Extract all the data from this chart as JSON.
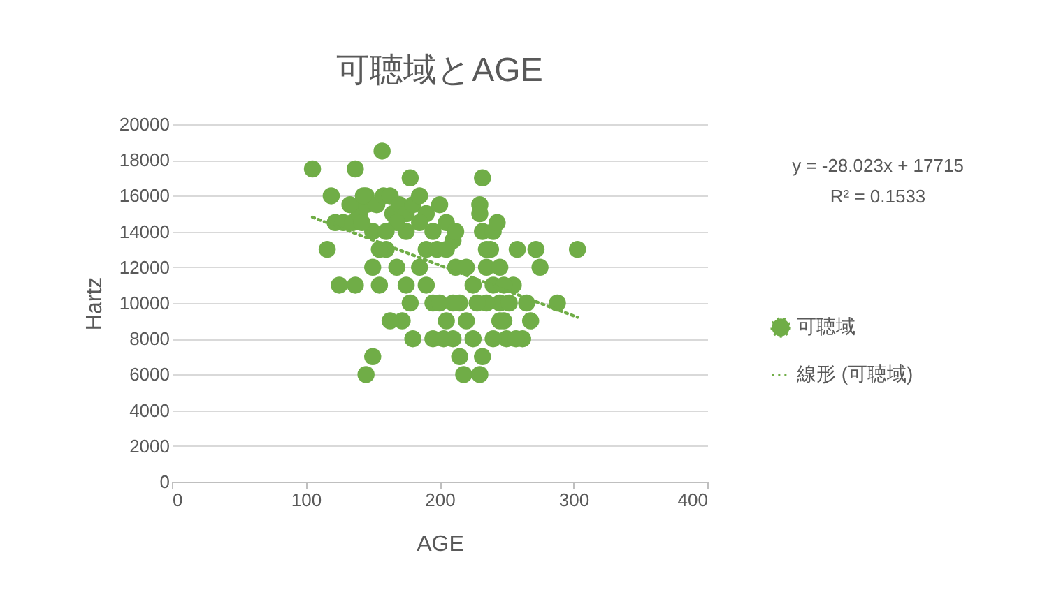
{
  "chart_data": {
    "type": "scatter",
    "title": "可聴域とAGE",
    "xlabel": "AGE",
    "ylabel": "Hartz",
    "xlim": [
      0,
      400
    ],
    "xticks": [
      0,
      100,
      200,
      300,
      400
    ],
    "ylim": [
      0,
      20000
    ],
    "yticks": [
      0,
      2000,
      4000,
      6000,
      8000,
      10000,
      12000,
      14000,
      16000,
      18000,
      20000
    ],
    "grid": "y",
    "legend": "right",
    "annotations": [
      "y = -28.023x + 17715",
      "R² = 0.1533"
    ],
    "series": [
      {
        "name": "可聴域",
        "marker": "circle",
        "color": "#70ad47",
        "x": [
          105,
          157,
          137,
          119,
          116,
          125,
          137,
          122,
          128,
          135,
          140,
          145,
          145,
          150,
          153,
          158,
          163,
          160,
          165,
          170,
          175,
          178,
          180,
          185,
          190,
          195,
          200,
          205,
          210,
          150,
          155,
          168,
          175,
          172,
          178,
          180,
          190,
          195,
          200,
          205,
          210,
          215,
          218,
          230,
          232,
          225,
          220,
          215,
          212,
          220,
          235,
          240,
          245,
          248,
          250,
          255,
          258,
          262,
          265,
          268,
          272,
          275,
          288,
          303,
          150,
          145,
          163,
          185,
          190,
          195,
          210,
          232,
          230,
          230,
          232,
          235,
          240,
          243,
          238,
          245,
          248,
          245,
          240,
          235,
          185,
          175,
          168,
          160,
          155,
          142,
          133,
          143,
          198,
          205,
          212,
          225,
          228,
          252,
          257,
          203
        ],
        "values": [
          17500,
          18500,
          17500,
          16000,
          13000,
          11000,
          11000,
          14500,
          14500,
          14500,
          15000,
          15500,
          16000,
          14000,
          15500,
          16000,
          16000,
          13000,
          15000,
          15500,
          15000,
          17000,
          15500,
          16000,
          15000,
          14000,
          15500,
          14500,
          13500,
          12000,
          11000,
          12000,
          11000,
          9000,
          10000,
          8000,
          11000,
          10000,
          10000,
          9000,
          8000,
          7000,
          6000,
          6000,
          7000,
          8000,
          9000,
          10000,
          12000,
          12000,
          12000,
          11000,
          10000,
          9000,
          8000,
          11000,
          13000,
          8000,
          10000,
          9000,
          13000,
          12000,
          10000,
          13000,
          7000,
          6000,
          9000,
          12000,
          13000,
          8000,
          10000,
          17000,
          15500,
          15000,
          14000,
          13000,
          14000,
          14500,
          13000,
          12000,
          11000,
          9000,
          8000,
          10000,
          14500,
          14000,
          14500,
          14000,
          13000,
          14500,
          15500,
          16000,
          13000,
          13000,
          14000,
          11000,
          10000,
          10000,
          8000,
          8000
        ]
      },
      {
        "name": "線形 (可聴域)",
        "type": "line",
        "marker": "none",
        "color": "#70ad47",
        "line_style": "dotted",
        "x": [
          105,
          303
        ],
        "values": [
          14800,
          9200
        ]
      }
    ]
  }
}
